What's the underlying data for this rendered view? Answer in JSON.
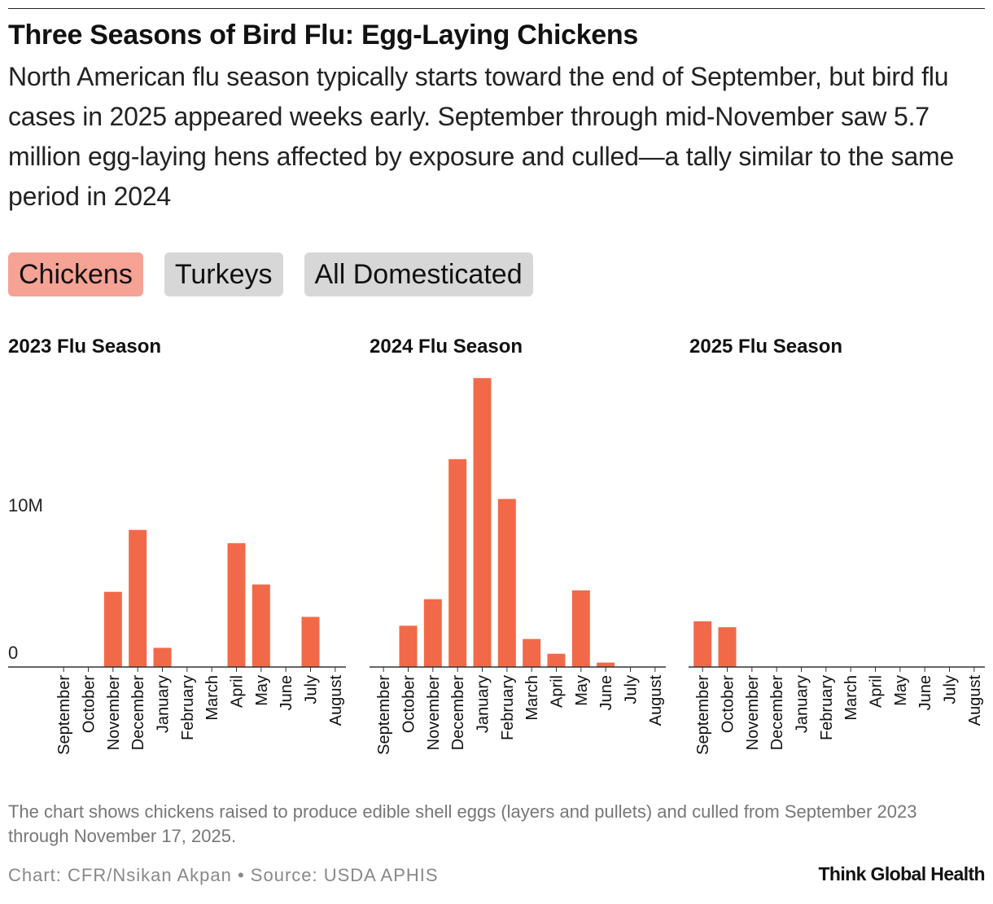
{
  "header": {
    "title": "Three Seasons of Bird Flu: Egg-Laying Chickens",
    "subtitle": "North American flu season typically starts toward the end of September, but bird flu cases in 2025 appeared weeks early. September through mid-November saw 5.7 million egg-laying hens affected by exposure and culled—a tally similar to the same period in 2024"
  },
  "toggles": [
    {
      "label": "Chickens",
      "active": true
    },
    {
      "label": "Turkeys",
      "active": false
    },
    {
      "label": "All Domesticated",
      "active": false
    }
  ],
  "colors": {
    "bar": "#f2694a",
    "active_toggle": "#f6a294",
    "inactive_toggle": "#d7d7d7"
  },
  "chart_data": {
    "type": "bar",
    "y_tick_labels": [
      "0",
      "10M"
    ],
    "y_ticks": [
      0,
      10000000
    ],
    "ylim": [
      0,
      19500000
    ],
    "months": [
      "September",
      "October",
      "November",
      "December",
      "January",
      "February",
      "March",
      "April",
      "May",
      "June",
      "July",
      "August"
    ],
    "panels": [
      {
        "title": "2023 Flu Season",
        "values": [
          0,
          0,
          5100000,
          9300000,
          1300000,
          0,
          0,
          8400000,
          5600000,
          0,
          3400000,
          0
        ]
      },
      {
        "title": "2024 Flu Season",
        "values": [
          0,
          2800000,
          4600000,
          14100000,
          19600000,
          11400000,
          1900000,
          900000,
          5200000,
          300000,
          0,
          0
        ]
      },
      {
        "title": "2025 Flu Season",
        "values": [
          3100000,
          2700000,
          0,
          0,
          0,
          0,
          0,
          0,
          0,
          0,
          0,
          0
        ]
      }
    ]
  },
  "footer": {
    "note": "The chart shows chickens raised to produce edible shell eggs (layers and pullets) and culled from September 2023 through November 17, 2025.",
    "credit": "Chart: CFR/Nsikan Akpan • Source: USDA APHIS",
    "brand": "Think Global Health"
  }
}
